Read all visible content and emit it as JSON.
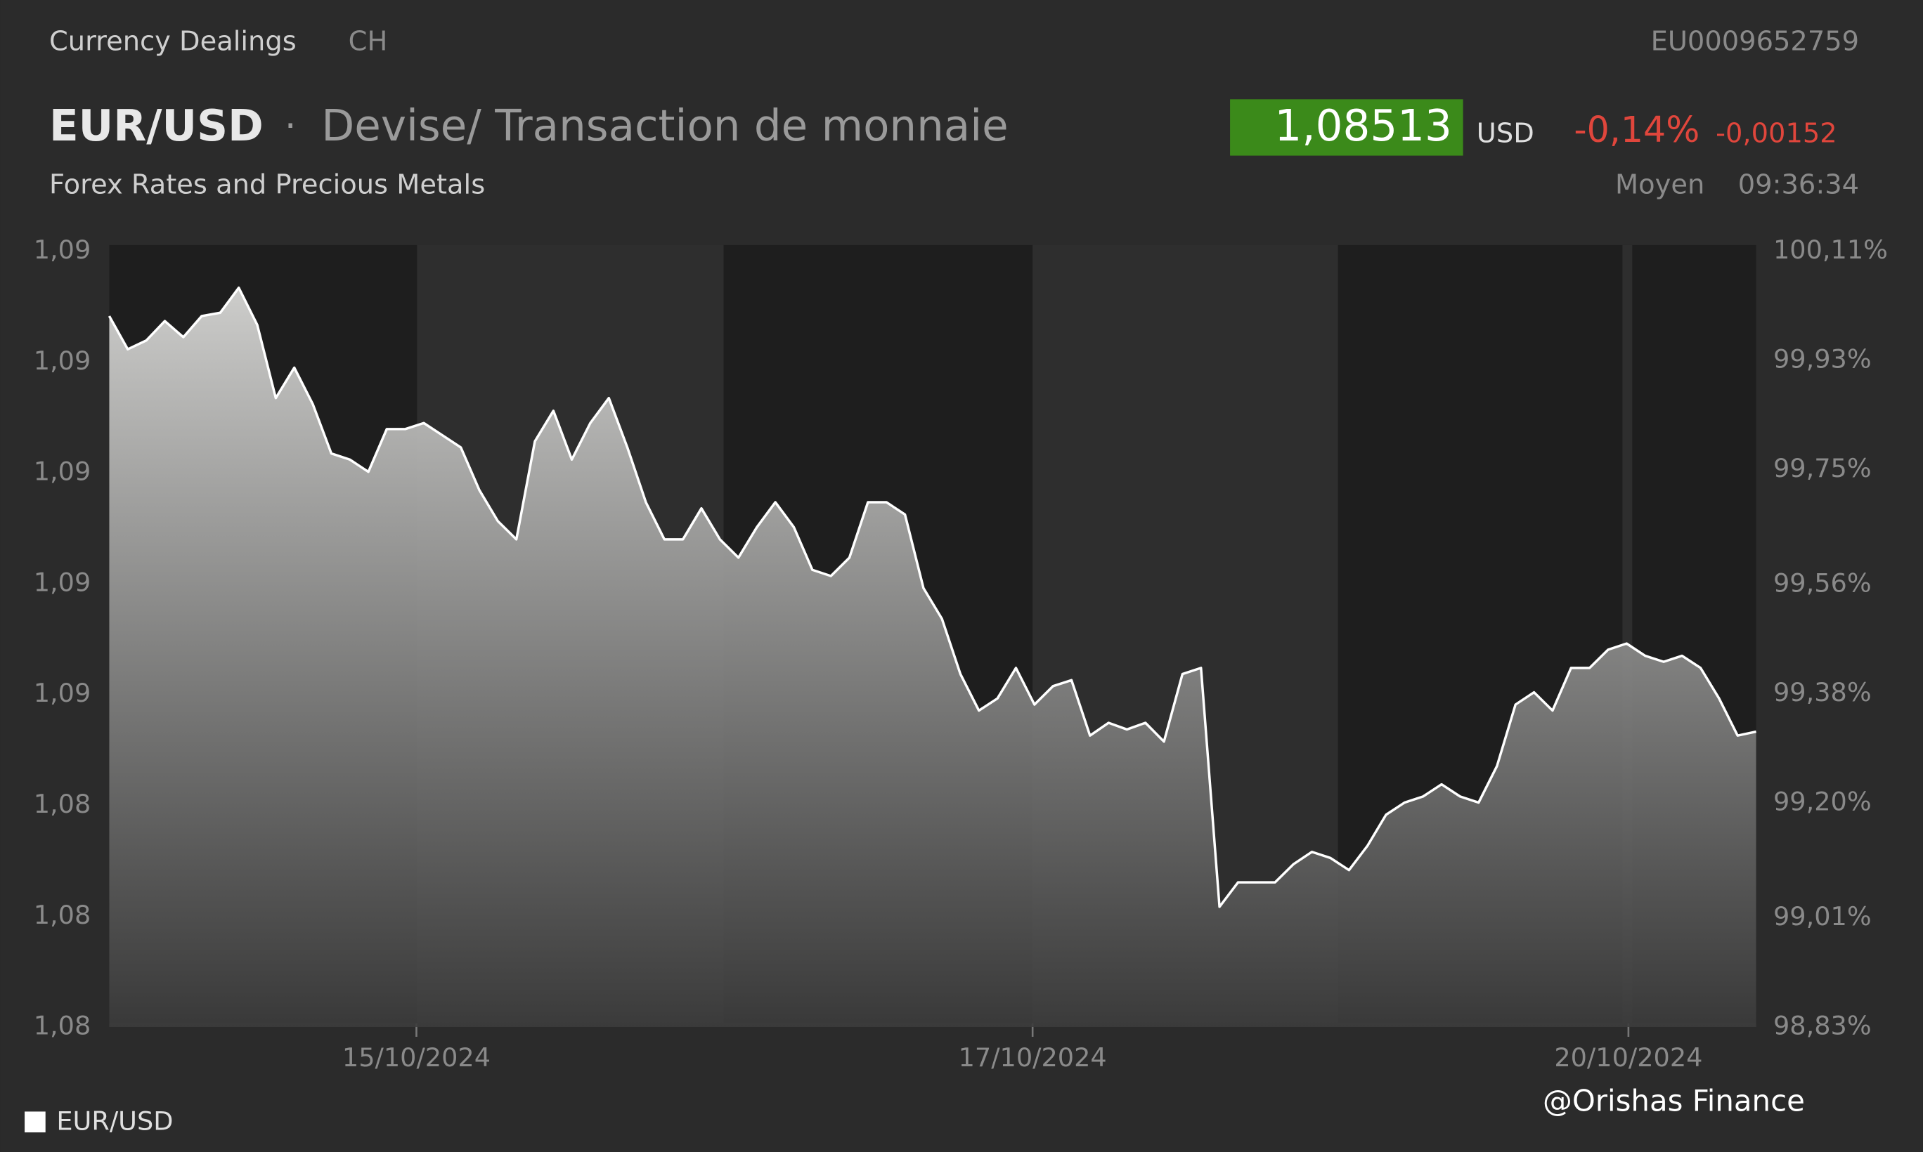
{
  "header": {
    "category": "Currency Dealings",
    "country": "CH",
    "isin": "EU0009652759",
    "symbol": "EUR/USD",
    "separator": "·",
    "description": "Devise/ Transaction de monnaie",
    "subtitle": "Forex Rates and Precious Metals",
    "price": "1,08513",
    "currency": "USD",
    "change_percent": "-0,14%",
    "change": "-0,00152",
    "price_type": "Moyen",
    "time": "09:36:34"
  },
  "watermark": "@Orishas Finance",
  "chart_data": {
    "type": "area",
    "series": [
      {
        "name": "EUR/USD",
        "color": "#ffffff",
        "values": [
          1.09263,
          1.09203,
          1.09219,
          1.09254,
          1.09225,
          1.09263,
          1.09269,
          1.09314,
          1.09247,
          1.09115,
          1.0917,
          1.09104,
          1.09015,
          1.09004,
          1.08982,
          1.09059,
          1.09059,
          1.0907,
          1.09048,
          1.09026,
          1.08949,
          1.08893,
          1.0886,
          1.09037,
          1.09092,
          1.09004,
          1.0907,
          1.09115,
          1.09026,
          1.08927,
          1.0886,
          1.0886,
          1.08916,
          1.0886,
          1.08827,
          1.08882,
          1.08927,
          1.08882,
          1.08805,
          1.08794,
          1.08827,
          1.08927,
          1.08927,
          1.08905,
          1.08772,
          1.08717,
          1.08617,
          1.08551,
          1.08573,
          1.08628,
          1.08562,
          1.08595,
          1.08606,
          1.08506,
          1.08529,
          1.08517,
          1.08529,
          1.08495,
          1.08617,
          1.08628,
          1.08197,
          1.08241,
          1.08241,
          1.08241,
          1.08274,
          1.08296,
          1.08285,
          1.08263,
          1.08307,
          1.08363,
          1.08385,
          1.08396,
          1.08418,
          1.08396,
          1.08385,
          1.08451,
          1.08562,
          1.08584,
          1.08551,
          1.08628,
          1.08628,
          1.08661,
          1.08672,
          1.0865,
          1.08639,
          1.0865,
          1.08628,
          1.08573,
          1.08506,
          1.08513
        ]
      }
    ],
    "xlim": [
      0,
      89
    ],
    "xticks": [
      {
        "value": 16.6,
        "label": "15/10/2024"
      },
      {
        "value": 49.9,
        "label": "17/10/2024"
      },
      {
        "value": 82.1,
        "label": "20/10/2024"
      }
    ],
    "ylim": [
      1.0798,
      1.0938
    ],
    "yticks": [
      {
        "value": 1.0798,
        "label": "1,08"
      },
      {
        "value": 1.0818,
        "label": "1,08"
      },
      {
        "value": 1.0838,
        "label": "1,08"
      },
      {
        "value": 1.0858,
        "label": "1,09"
      },
      {
        "value": 1.0878,
        "label": "1,09"
      },
      {
        "value": 1.0898,
        "label": "1,09"
      },
      {
        "value": 1.0918,
        "label": "1,09"
      },
      {
        "value": 1.0938,
        "label": "1,09"
      }
    ],
    "y2lim": [
      98.83,
      100.11
    ],
    "y2ticks": [
      {
        "value": 98.83,
        "label": "98,83%"
      },
      {
        "value": 99.01,
        "label": "99,01%"
      },
      {
        "value": 99.2,
        "label": "99,20%"
      },
      {
        "value": 99.38,
        "label": "99,38%"
      },
      {
        "value": 99.56,
        "label": "99,56%"
      },
      {
        "value": 99.75,
        "label": "99,75%"
      },
      {
        "value": 99.93,
        "label": "99,93%"
      },
      {
        "value": 100.11,
        "label": "100,11%"
      }
    ]
  }
}
